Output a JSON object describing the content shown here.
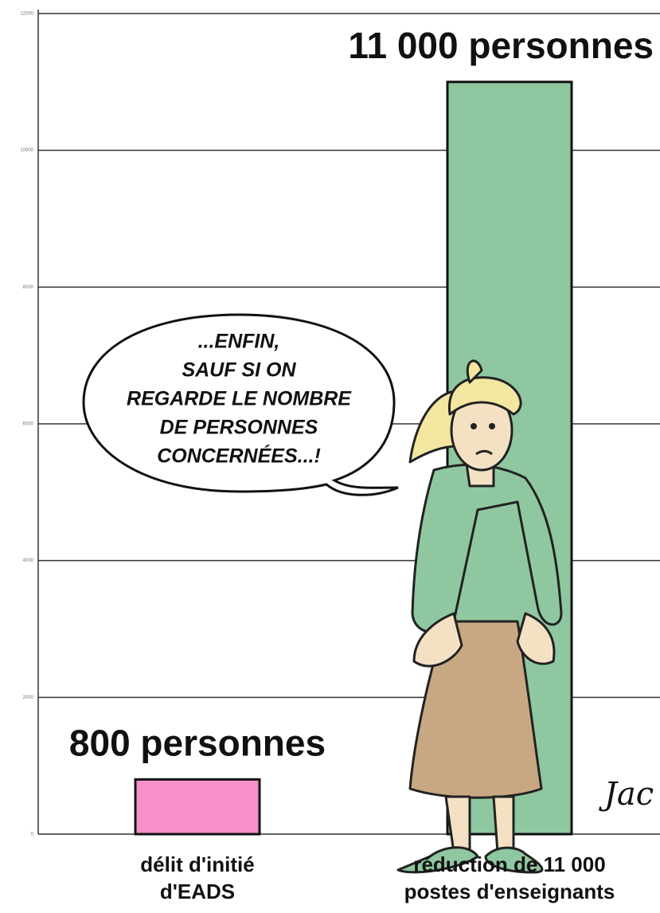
{
  "chart_data": {
    "type": "bar",
    "categories": [
      "délit d'initié d'EADS",
      "réduction de 11 000 postes d'enseignants"
    ],
    "values": [
      800,
      11000
    ],
    "value_labels": [
      "800 personnes",
      "11 000 personnes"
    ],
    "colors": [
      "#f78fc8",
      "#8fc8a0"
    ],
    "ylim": [
      0,
      12000
    ],
    "yticks": [
      0,
      2000,
      4000,
      6000,
      8000,
      10000,
      12000
    ],
    "grid": true,
    "annotations": {
      "speech": [
        "...ENFIN,",
        "SAUF SI ON",
        "REGARDE LE NOMBRE",
        "DE PERSONNES",
        "CONCERNÉES...!"
      ],
      "signature": "Jac"
    }
  }
}
